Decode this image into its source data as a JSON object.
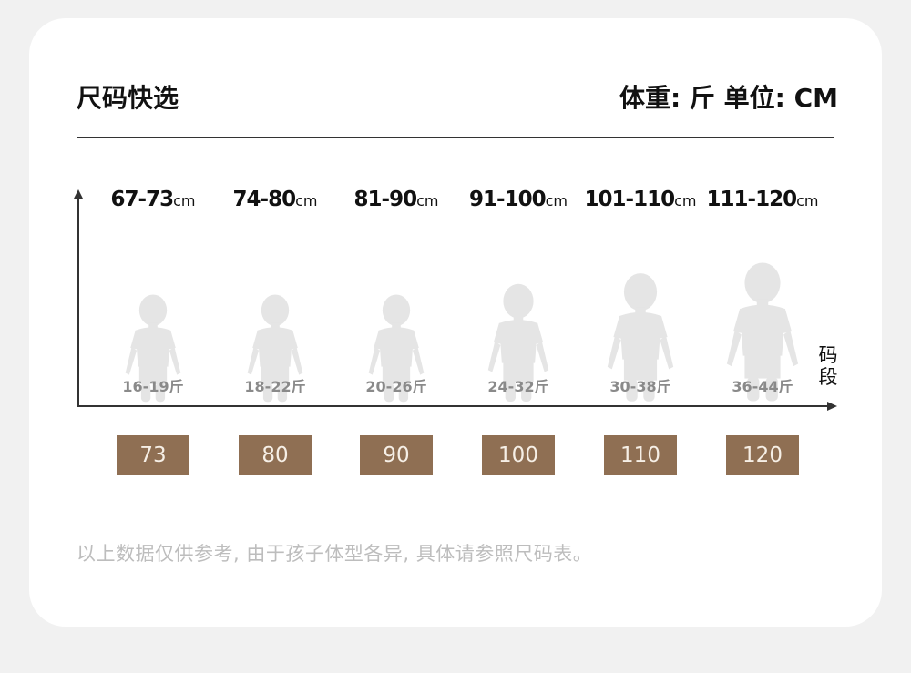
{
  "header": {
    "title": "尺码快选",
    "units": "体重: 斤  单位: CM"
  },
  "axis": {
    "x_label": "码段"
  },
  "sizes": [
    {
      "height": "67-73",
      "unit": "cm",
      "weight": "16-19斤",
      "size": "73"
    },
    {
      "height": "74-80",
      "unit": "cm",
      "weight": "18-22斤",
      "size": "80"
    },
    {
      "height": "81-90",
      "unit": "cm",
      "weight": "20-26斤",
      "size": "90"
    },
    {
      "height": "91-100",
      "unit": "cm",
      "weight": "24-32斤",
      "size": "100"
    },
    {
      "height": "101-110",
      "unit": "cm",
      "weight": "30-38斤",
      "size": "110"
    },
    {
      "height": "111-120",
      "unit": "cm",
      "weight": "36-44斤",
      "size": "120"
    }
  ],
  "footer": {
    "note": "以上数据仅供参考, 由于孩子体型各异, 具体请参照尺码表。"
  },
  "colors": {
    "size_box": "#8f6f53",
    "silhouette": "#e5e5e5",
    "background": "#f1f1f1"
  }
}
